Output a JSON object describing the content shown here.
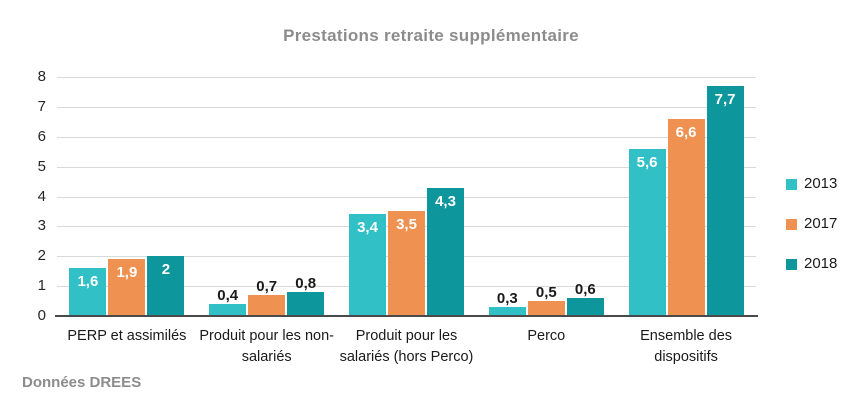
{
  "chart": {
    "title": "Prestations retraite supplémentaire",
    "source": "Données DREES"
  },
  "chart_data": {
    "type": "bar",
    "title": "Prestations retraite supplémentaire",
    "xlabel": "",
    "ylabel": "",
    "ylim": [
      0,
      8
    ],
    "yticks": [
      0,
      1,
      2,
      3,
      4,
      5,
      6,
      7,
      8
    ],
    "grid": true,
    "legend_position": "right",
    "source": "Données DREES",
    "categories": [
      "PERP et assimilés",
      "Produit pour les non-salariés",
      "Produit pour les salariés (hors Perco)",
      "Perco",
      "Ensemble des dispositifs"
    ],
    "series": [
      {
        "name": "2013",
        "color": "#31C0C6",
        "values": [
          1.6,
          0.4,
          3.4,
          0.3,
          5.6
        ],
        "labels": [
          "1,6",
          "0,4",
          "3,4",
          "0,3",
          "5,6"
        ]
      },
      {
        "name": "2017",
        "color": "#EF9150",
        "values": [
          1.9,
          0.7,
          3.5,
          0.5,
          6.6
        ],
        "labels": [
          "1,9",
          "0,7",
          "3,5",
          "0,5",
          "6,6"
        ]
      },
      {
        "name": "2018",
        "color": "#0D969B",
        "values": [
          2,
          0.8,
          4.3,
          0.6,
          7.7
        ],
        "labels": [
          "2",
          "0,8",
          "4,3",
          "0,6",
          "7,7"
        ]
      }
    ],
    "colors": {
      "grid": "#D9D9D9",
      "baseline": "#4A4A4A",
      "title_text": "#8C8C8C",
      "axis_text": "#262626",
      "category_text": "#1A1A1A",
      "label_inside": "#FFFFFF",
      "label_outside": "#1A1A1A",
      "source_text": "#8C8C8C",
      "background": "#FFFFFF"
    }
  }
}
